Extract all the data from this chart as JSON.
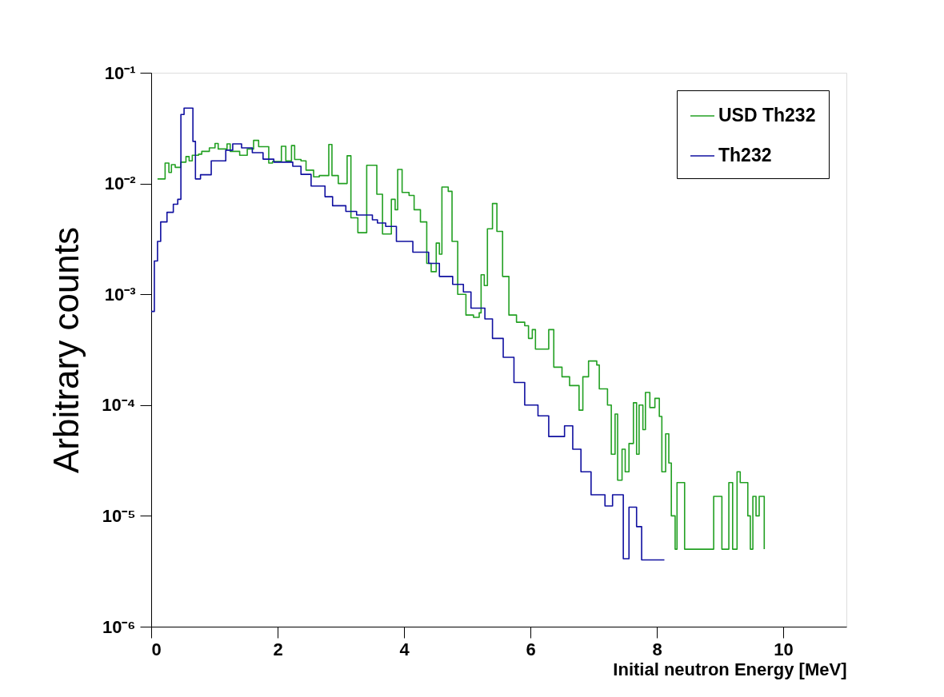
{
  "chart_data": {
    "type": "step",
    "xlabel": "Initial neutron Energy [MeV]",
    "ylabel": "Arbitrary counts",
    "log": "y",
    "xlim": [
      0,
      11
    ],
    "xticks": [
      0,
      2,
      4,
      6,
      8,
      10
    ],
    "ylim": [
      1e-06,
      0.1
    ],
    "yticks": [
      {
        "value": 1e-06,
        "label": "10⁻⁶"
      },
      {
        "value": 1e-05,
        "label": "10⁻⁵"
      },
      {
        "value": 0.0001,
        "label": "10⁻⁴"
      },
      {
        "value": 0.001,
        "label": "10⁻³"
      },
      {
        "value": 0.01,
        "label": "10⁻²"
      },
      {
        "value": 0.1,
        "label": "10⁻¹"
      }
    ],
    "grid": false,
    "legend": "top right",
    "series": [
      {
        "name": "USD Th232",
        "color": "#22a022",
        "x": [
          0.1,
          0.22,
          0.28,
          0.32,
          0.38,
          0.47,
          0.55,
          0.6,
          0.65,
          0.75,
          0.8,
          0.92,
          1.01,
          1.06,
          1.15,
          1.2,
          1.25,
          1.4,
          1.52,
          1.62,
          1.7,
          1.86,
          1.92,
          2.06,
          2.13,
          2.22,
          2.27,
          2.37,
          2.45,
          2.57,
          2.66,
          2.81,
          2.86,
          2.96,
          3.1,
          3.16,
          3.27,
          3.41,
          3.57,
          3.66,
          3.8,
          3.86,
          3.9,
          3.97,
          4.08,
          4.16,
          4.26,
          4.36,
          4.43,
          4.51,
          4.56,
          4.6,
          4.7,
          4.76,
          4.85,
          4.98,
          5.1,
          5.19,
          5.22,
          5.27,
          5.32,
          5.4,
          5.47,
          5.56,
          5.66,
          5.78,
          5.91,
          5.97,
          6.03,
          6.08,
          6.2,
          6.29,
          6.37,
          6.5,
          6.62,
          6.77,
          6.83,
          6.92,
          7.05,
          7.09,
          7.22,
          7.28,
          7.34,
          7.38,
          7.45,
          7.5,
          7.56,
          7.63,
          7.68,
          7.72,
          7.78,
          7.82,
          7.89,
          7.97,
          8.04,
          8.08,
          8.14,
          8.19,
          8.23,
          8.29,
          8.32,
          8.44,
          8.85,
          8.9,
          9.03,
          9.14,
          9.2,
          9.27,
          9.32,
          9.4,
          9.44,
          9.48,
          9.52,
          9.57,
          9.62,
          9.7
        ],
        "values": [
          0.011,
          0.0153,
          0.0126,
          0.0148,
          0.014,
          0.0156,
          0.0175,
          0.016,
          0.018,
          0.0184,
          0.0195,
          0.021,
          0.023,
          0.0205,
          0.0205,
          0.0228,
          0.0195,
          0.018,
          0.0205,
          0.0245,
          0.0215,
          0.0153,
          0.0158,
          0.0217,
          0.016,
          0.022,
          0.0165,
          0.016,
          0.0132,
          0.0115,
          0.0118,
          0.0225,
          0.0118,
          0.01,
          0.0178,
          0.0049,
          0.0036,
          0.0146,
          0.008,
          0.0035,
          0.0072,
          0.0058,
          0.0134,
          0.0083,
          0.0078,
          0.0058,
          0.0045,
          0.0019,
          0.0016,
          0.0029,
          0.0023,
          0.0093,
          0.0085,
          0.003,
          0.001,
          0.00065,
          0.00062,
          0.00068,
          0.0015,
          0.0012,
          0.0039,
          0.0066,
          0.0037,
          0.00145,
          0.00065,
          0.00056,
          0.00052,
          0.0004,
          0.00048,
          0.00032,
          0.00032,
          0.00048,
          0.00022,
          0.00018,
          0.00015,
          9e-05,
          0.00018,
          0.00025,
          0.00023,
          0.00014,
          0.0001,
          3.6e-05,
          8.3e-05,
          2.1e-05,
          4e-05,
          2.5e-05,
          4.5e-05,
          0.000105,
          3.6e-05,
          0.0001,
          6e-05,
          0.00013,
          9.5e-05,
          0.000115,
          7.9e-05,
          2.5e-05,
          5.5e-05,
          3e-05,
          1e-05,
          5e-06,
          2e-05,
          5e-06,
          5e-06,
          1.5e-05,
          5e-06,
          2e-05,
          5e-06,
          2.5e-05,
          2e-05,
          2e-05,
          1e-05,
          5e-06,
          1.5e-05,
          1e-05,
          1.5e-05,
          5e-06
        ]
      },
      {
        "name": "Th232",
        "color": "#1010a0",
        "x": [
          0.0,
          0.05,
          0.1,
          0.15,
          0.25,
          0.35,
          0.42,
          0.47,
          0.52,
          0.66,
          0.7,
          0.78,
          0.95,
          1.18,
          1.29,
          1.43,
          1.6,
          1.77,
          1.94,
          2.11,
          2.24,
          2.37,
          2.53,
          2.75,
          2.87,
          3.08,
          3.25,
          3.5,
          3.58,
          3.71,
          3.88,
          4.14,
          4.39,
          4.56,
          4.77,
          4.94,
          5.06,
          5.28,
          5.4,
          5.57,
          5.74,
          5.91,
          6.12,
          6.29,
          6.54,
          6.67,
          6.8,
          6.96,
          7.18,
          7.3,
          7.47,
          7.56,
          7.68,
          7.76,
          7.97,
          8.12
        ],
        "values": [
          0.0007,
          0.002,
          0.003,
          0.0045,
          0.0055,
          0.0065,
          0.0072,
          0.042,
          0.048,
          0.024,
          0.011,
          0.012,
          0.016,
          0.02,
          0.0228,
          0.021,
          0.019,
          0.0166,
          0.0156,
          0.0156,
          0.0143,
          0.0121,
          0.0095,
          0.0076,
          0.0063,
          0.0056,
          0.0052,
          0.0047,
          0.0044,
          0.0041,
          0.003,
          0.0024,
          0.0019,
          0.00145,
          0.00123,
          0.00105,
          0.00075,
          0.0006,
          0.0004,
          0.00027,
          0.00016,
          0.0001,
          8e-05,
          5.2e-05,
          6.5e-05,
          4e-05,
          2.5e-05,
          1.55e-05,
          1.23e-05,
          1.55e-05,
          4.1e-06,
          1.2e-05,
          8e-06,
          4e-06,
          4e-06,
          4e-06
        ]
      }
    ]
  }
}
